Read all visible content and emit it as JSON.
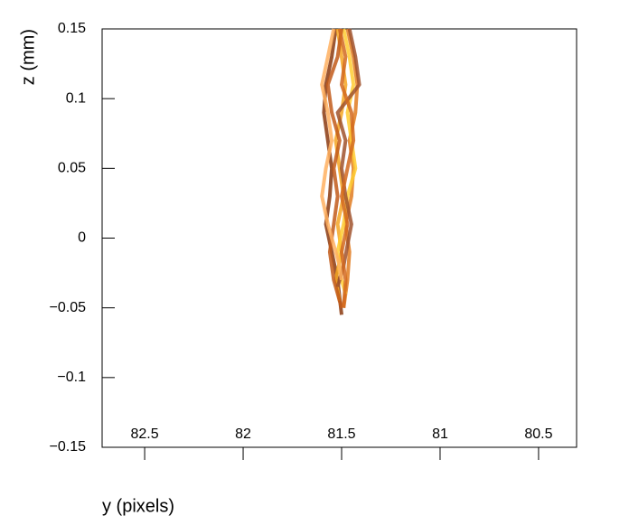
{
  "chart_data": {
    "type": "line",
    "xlabel": "y (pixels)",
    "ylabel": "z (mm)",
    "xlim": [
      82.716,
      80.307
    ],
    "ylim": [
      -0.15,
      0.15
    ],
    "xticks": [
      82.5,
      82,
      81.5,
      81,
      80.5
    ],
    "yticks": [
      {
        "value": -0.15,
        "label": "−0.15"
      },
      {
        "value": -0.1,
        "label": "−0.1"
      },
      {
        "value": -0.05,
        "label": "−0.05"
      },
      0,
      0.05,
      0.1,
      0.15
    ],
    "series": [
      {
        "color": "#8b3a0f",
        "x": [
          81.5,
          81.52,
          81.55,
          81.58,
          81.56,
          81.55,
          81.57,
          81.59,
          81.58,
          81.55,
          81.53
        ],
        "values": [
          -0.055,
          -0.03,
          -0.01,
          0.01,
          0.03,
          0.05,
          0.07,
          0.09,
          0.11,
          0.13,
          0.15
        ]
      },
      {
        "color": "#e07b20",
        "x": [
          81.49,
          81.47,
          81.46,
          81.48,
          81.45,
          81.44,
          81.46,
          81.43,
          81.42,
          81.44,
          81.47
        ],
        "values": [
          -0.05,
          -0.03,
          -0.01,
          0.01,
          0.03,
          0.05,
          0.07,
          0.09,
          0.11,
          0.13,
          0.15
        ]
      },
      {
        "color": "#f5a623",
        "x": [
          81.51,
          81.53,
          81.5,
          81.52,
          81.49,
          81.51,
          81.53,
          81.5,
          81.48,
          81.5,
          81.52
        ],
        "values": [
          -0.045,
          -0.03,
          -0.01,
          0.01,
          0.03,
          0.05,
          0.07,
          0.09,
          0.11,
          0.13,
          0.15
        ]
      },
      {
        "color": "#ffcc33",
        "x": [
          81.48,
          81.5,
          81.52,
          81.49,
          81.47,
          81.43,
          81.45,
          81.47,
          81.44,
          81.46,
          81.49
        ],
        "values": [
          -0.04,
          -0.03,
          -0.01,
          0.01,
          0.03,
          0.05,
          0.07,
          0.09,
          0.11,
          0.13,
          0.15
        ]
      },
      {
        "color": "#c25a1a",
        "x": [
          81.5,
          81.54,
          81.56,
          81.54,
          81.52,
          81.54,
          81.51,
          81.55,
          81.57,
          81.52,
          81.5
        ],
        "values": [
          -0.05,
          -0.03,
          -0.01,
          0.01,
          0.03,
          0.05,
          0.07,
          0.09,
          0.11,
          0.13,
          0.15
        ]
      },
      {
        "color": "#a0522d",
        "x": [
          81.52,
          81.49,
          81.47,
          81.45,
          81.48,
          81.5,
          81.48,
          81.52,
          81.41,
          81.43,
          81.46
        ],
        "values": [
          -0.035,
          -0.02,
          -0.005,
          0.01,
          0.03,
          0.05,
          0.07,
          0.09,
          0.11,
          0.13,
          0.15
        ]
      },
      {
        "color": "#ffb060",
        "x": [
          81.5,
          81.51,
          81.54,
          81.57,
          81.6,
          81.58,
          81.55,
          81.57,
          81.6,
          81.57,
          81.54
        ],
        "values": [
          -0.03,
          -0.02,
          -0.005,
          0.01,
          0.03,
          0.05,
          0.07,
          0.09,
          0.11,
          0.13,
          0.15
        ]
      },
      {
        "color": "#d2691e",
        "x": [
          81.49,
          81.48,
          81.5,
          81.47,
          81.5,
          81.47,
          81.44,
          81.45,
          81.5,
          81.48,
          81.51
        ],
        "values": [
          -0.05,
          -0.03,
          -0.01,
          0.01,
          0.03,
          0.05,
          0.07,
          0.09,
          0.11,
          0.13,
          0.15
        ]
      }
    ]
  }
}
